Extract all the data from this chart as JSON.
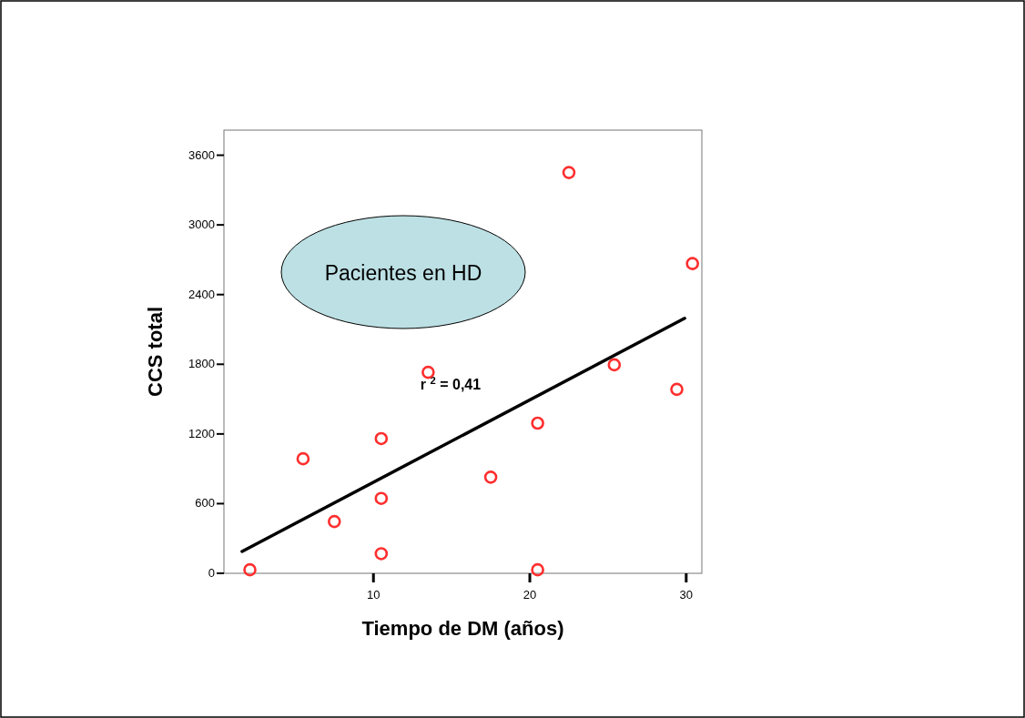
{
  "chart_data": {
    "type": "scatter",
    "xlabel": "Tiempo de DM (años)",
    "ylabel": "CCS total",
    "xlim": [
      0.44,
      31
    ],
    "ylim": [
      0,
      3816
    ],
    "xticks": [
      10,
      20,
      30
    ],
    "yticks": [
      0,
      600,
      1200,
      1800,
      2400,
      3000,
      3600
    ],
    "grid": false,
    "series": [
      {
        "marker": "circle",
        "color": "#ff2e2e",
        "x": [
          2.1,
          5.5,
          7.5,
          10.5,
          10.5,
          10.5,
          13.5,
          17.5,
          20.5,
          20.5,
          22.5,
          25.4,
          29.4,
          30.4
        ],
        "values": [
          30,
          986,
          446,
          1160,
          645,
          169,
          1731,
          828,
          1293,
          30,
          3451,
          1795,
          1584,
          2667
        ]
      },
      {
        "type": "line",
        "color": "#000000",
        "x": [
          1.6,
          29.9
        ],
        "values": [
          188,
          2196
        ],
        "line_style": "solid"
      }
    ],
    "annotations": [
      "Pacientes en HD",
      "r $^{2}$ = 0,41"
    ]
  }
}
